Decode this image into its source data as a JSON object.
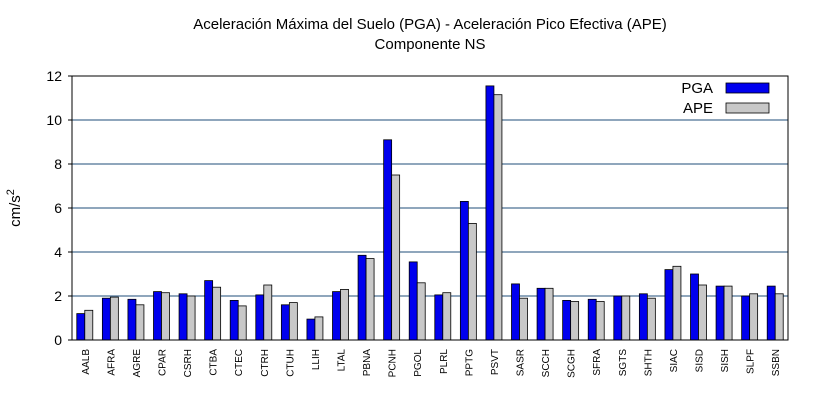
{
  "chart_data": {
    "type": "bar",
    "title": "Aceleración Máxima del Suelo (PGA) -  Aceleración Pico Efectiva (APE)",
    "subtitle": "Componente NS",
    "ylabel_base": "cm/s",
    "ylabel_exp": "2",
    "xlabel": "",
    "ylim": [
      0,
      12
    ],
    "yticks": [
      0,
      2,
      4,
      6,
      8,
      10,
      12
    ],
    "grid": true,
    "legend_position": "top-right",
    "categories": [
      "AALB",
      "AFRA",
      "AGRE",
      "CPAR",
      "CSRH",
      "CTBA",
      "CTEC",
      "CTRH",
      "CTUH",
      "LLIH",
      "LTAL",
      "PBNA",
      "PCNH",
      "PGOL",
      "PLRL",
      "PPTG",
      "PSVT",
      "SASR",
      "SCCH",
      "SCGH",
      "SFRA",
      "SGTS",
      "SHTH",
      "SIAC",
      "SISD",
      "SISH",
      "SLPF",
      "SSBN"
    ],
    "series": [
      {
        "name": "PGA",
        "color": "#0000ee",
        "values": [
          1.2,
          1.9,
          1.85,
          2.2,
          2.1,
          2.7,
          1.8,
          2.05,
          1.6,
          0.95,
          2.2,
          3.85,
          9.1,
          3.55,
          2.05,
          6.3,
          11.55,
          2.55,
          2.35,
          1.8,
          1.85,
          2.0,
          2.1,
          3.2,
          3.0,
          2.45,
          2.0,
          2.45
        ]
      },
      {
        "name": "APE",
        "color": "#c8c8c8",
        "values": [
          1.35,
          1.95,
          1.6,
          2.15,
          2.0,
          2.4,
          1.55,
          2.5,
          1.7,
          1.05,
          2.3,
          3.7,
          7.5,
          2.6,
          2.15,
          5.3,
          11.15,
          1.9,
          2.35,
          1.75,
          1.75,
          2.0,
          1.9,
          3.35,
          2.5,
          2.45,
          2.1,
          2.1
        ]
      }
    ]
  }
}
